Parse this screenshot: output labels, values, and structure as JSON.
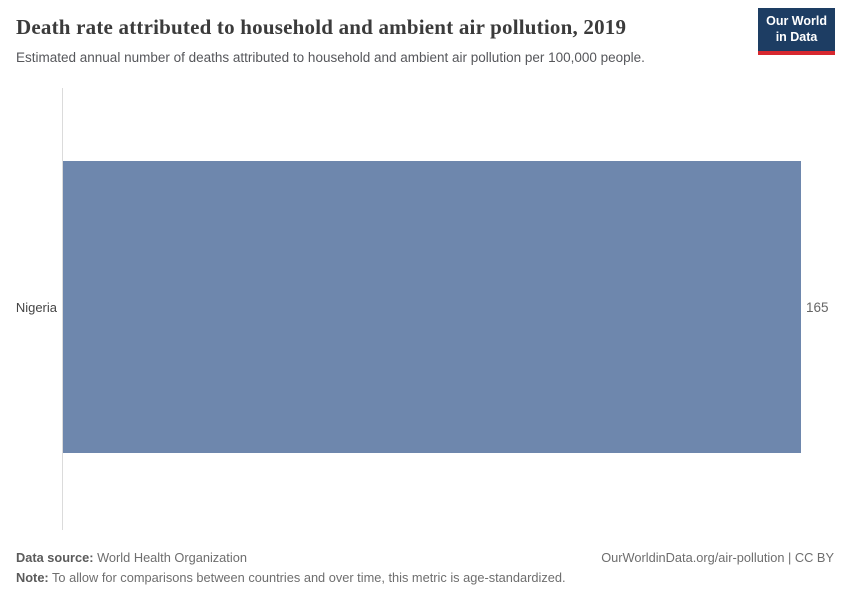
{
  "header": {
    "title": "Death rate attributed to household and ambient air pollution, 2019",
    "subtitle": "Estimated annual number of deaths attributed to household and ambient air pollution per 100,000 people.",
    "logo_line1": "Our World",
    "logo_line2": "in Data",
    "logo_bg_color": "#1d3d63",
    "logo_accent_color": "#d7282f"
  },
  "chart_data": {
    "type": "bar",
    "orientation": "horizontal",
    "title": "Death rate attributed to household and ambient air pollution, 2019",
    "categories": [
      "Nigeria"
    ],
    "values": [
      165
    ],
    "value_labels": [
      "165"
    ],
    "xlabel": "",
    "ylabel": "",
    "xlim": [
      0,
      165
    ],
    "grid": false,
    "legend": "none",
    "bar_color": "#6e87ad",
    "axis_line_color": "#dbdbdb"
  },
  "footer": {
    "data_source_label": "Data source:",
    "data_source_value": " World Health Organization",
    "note_label": "Note:",
    "note_value": " To allow for comparisons between countries and over time, this metric is age-standardized.",
    "attribution": "OurWorldinData.org/air-pollution | CC BY"
  }
}
